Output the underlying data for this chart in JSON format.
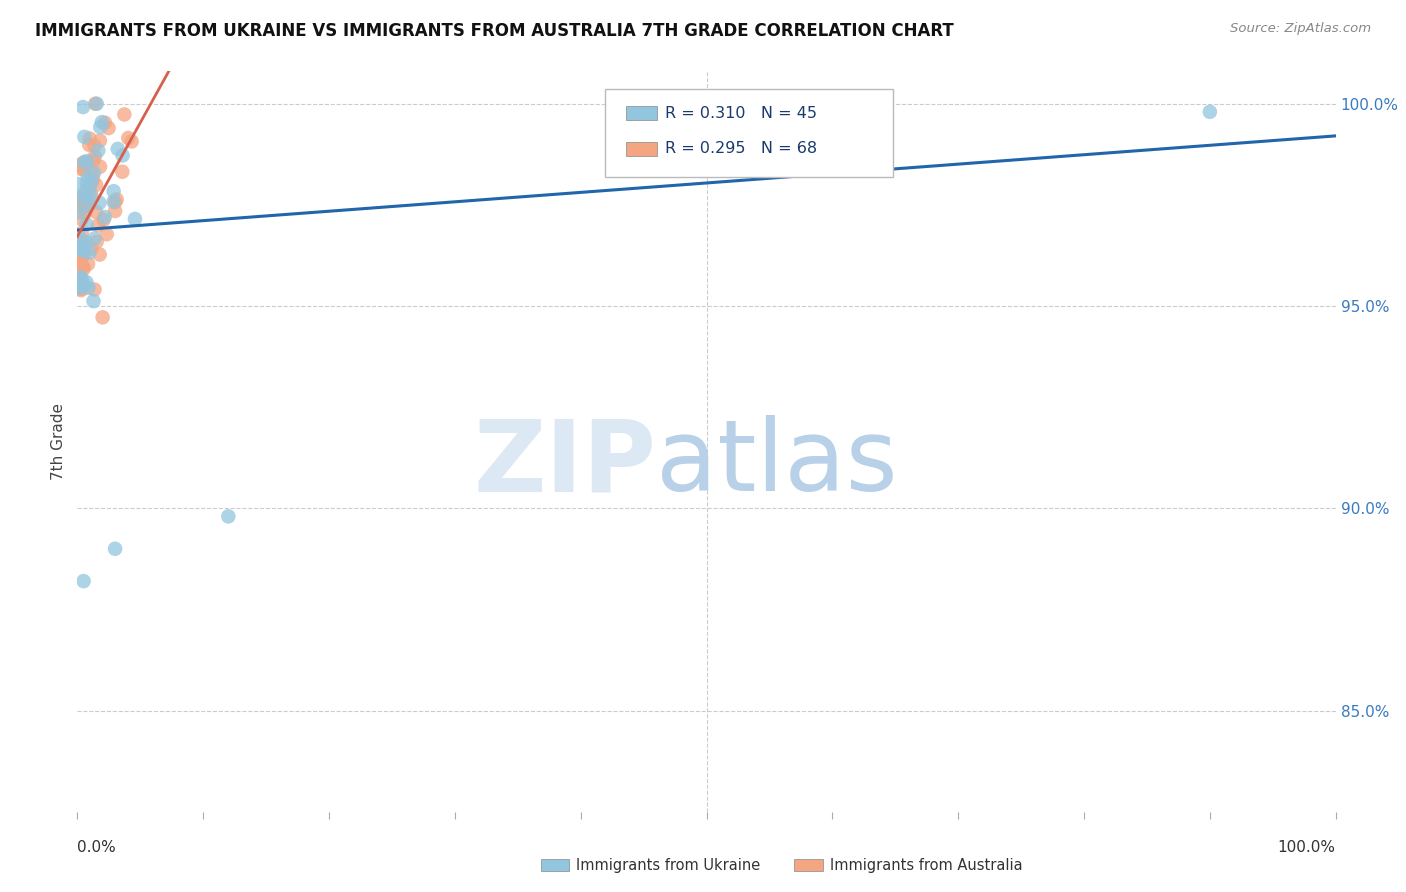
{
  "title": "IMMIGRANTS FROM UKRAINE VS IMMIGRANTS FROM AUSTRALIA 7TH GRADE CORRELATION CHART",
  "source": "Source: ZipAtlas.com",
  "ylabel": "7th Grade",
  "R_blue": 0.31,
  "N_blue": 45,
  "R_pink": 0.295,
  "N_pink": 68,
  "blue_color": "#92c5de",
  "pink_color": "#f4a582",
  "trendline_blue": "#2166ac",
  "trendline_pink": "#d6604d",
  "watermark_zip": "ZIP",
  "watermark_atlas": "atlas",
  "legend_blue_label": "Immigrants from Ukraine",
  "legend_pink_label": "Immigrants from Australia",
  "background_color": "#ffffff",
  "xlim": [
    0.0,
    1.0
  ],
  "ylim_low": 0.825,
  "ylim_high": 1.008,
  "yticks": [
    0.85,
    0.9,
    0.95,
    1.0
  ],
  "ytick_labels": [
    "85.0%",
    "90.0%",
    "95.0%",
    "100.0%"
  ],
  "grid_color": "#cccccc",
  "legend_text_color": "#1a3a6e",
  "blue_seed": 7,
  "pink_seed": 13
}
